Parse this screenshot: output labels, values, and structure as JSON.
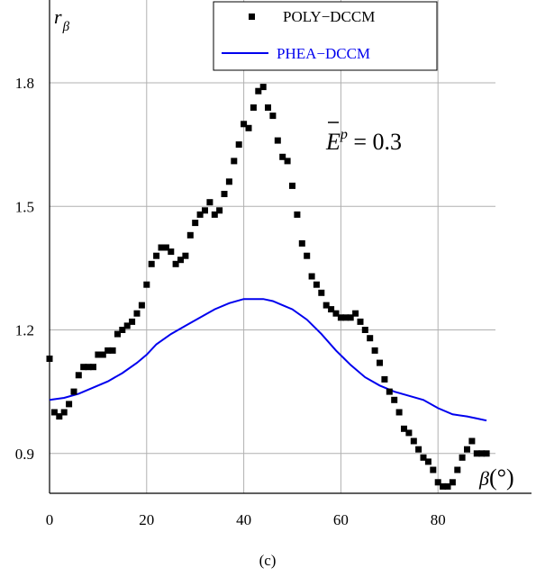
{
  "caption": "(c)",
  "chart_data": {
    "type": "scatter",
    "ylabel": "r",
    "ylabel_subscript": "β",
    "xlabel_symbol": "β",
    "xlabel_unit": "(°)",
    "annotation": {
      "symbol": "E",
      "superscript": "p",
      "suffix": " = 0.3"
    },
    "xlim": [
      0,
      90
    ],
    "ylim": [
      0.82,
      2.0
    ],
    "x_ticks": [
      0,
      20,
      40,
      60,
      80
    ],
    "x_tick_labels": [
      "0",
      "20",
      "40",
      "60",
      "80"
    ],
    "y_ticks": [
      0.9,
      1.2,
      1.5,
      1.8
    ],
    "y_tick_labels": [
      "0.9",
      "1.2",
      "1.5",
      "1.8"
    ],
    "grid": true,
    "legend_position": "top-right",
    "series": [
      {
        "name": "POLY−DCCM",
        "style": "markers",
        "color": "#000000",
        "x": [
          0,
          1,
          2,
          3,
          4,
          5,
          6,
          7,
          8,
          9,
          10,
          11,
          12,
          13,
          14,
          15,
          16,
          17,
          18,
          19,
          20,
          21,
          22,
          23,
          24,
          25,
          26,
          27,
          28,
          29,
          30,
          31,
          32,
          33,
          34,
          35,
          36,
          37,
          38,
          39,
          40,
          41,
          42,
          43,
          44,
          45,
          46,
          47,
          48,
          49,
          50,
          51,
          52,
          53,
          54,
          55,
          56,
          57,
          58,
          59,
          60,
          61,
          62,
          63,
          64,
          65,
          66,
          67,
          68,
          69,
          70,
          71,
          72,
          73,
          74,
          75,
          76,
          77,
          78,
          79,
          80,
          81,
          82,
          83,
          84,
          85,
          86,
          87,
          88,
          89,
          90
        ],
        "y": [
          1.13,
          1.0,
          0.99,
          1.0,
          1.02,
          1.05,
          1.09,
          1.11,
          1.11,
          1.11,
          1.14,
          1.14,
          1.15,
          1.15,
          1.19,
          1.2,
          1.21,
          1.22,
          1.24,
          1.26,
          1.31,
          1.36,
          1.38,
          1.4,
          1.4,
          1.39,
          1.36,
          1.37,
          1.38,
          1.43,
          1.46,
          1.48,
          1.49,
          1.51,
          1.48,
          1.49,
          1.53,
          1.56,
          1.61,
          1.65,
          1.7,
          1.69,
          1.74,
          1.78,
          1.79,
          1.74,
          1.72,
          1.66,
          1.62,
          1.61,
          1.55,
          1.48,
          1.41,
          1.38,
          1.33,
          1.31,
          1.29,
          1.26,
          1.25,
          1.24,
          1.23,
          1.23,
          1.23,
          1.24,
          1.22,
          1.2,
          1.18,
          1.15,
          1.12,
          1.08,
          1.05,
          1.03,
          1.0,
          0.96,
          0.95,
          0.93,
          0.91,
          0.89,
          0.88,
          0.86,
          0.83,
          0.82,
          0.82,
          0.83,
          0.86,
          0.89,
          0.91,
          0.93,
          0.9,
          0.9,
          0.9
        ]
      },
      {
        "name": "PHEA−DCCM",
        "style": "line",
        "color": "#0000ee",
        "x": [
          0,
          3,
          6,
          9,
          12,
          15,
          18,
          20,
          22,
          25,
          28,
          31,
          34,
          37,
          40,
          42,
          44,
          46,
          48,
          50,
          53,
          56,
          59,
          62,
          65,
          68,
          71,
          74,
          77,
          80,
          83,
          86,
          88,
          90
        ],
        "y": [
          1.03,
          1.035,
          1.045,
          1.06,
          1.075,
          1.095,
          1.12,
          1.14,
          1.165,
          1.19,
          1.21,
          1.23,
          1.25,
          1.265,
          1.275,
          1.275,
          1.275,
          1.27,
          1.26,
          1.25,
          1.225,
          1.19,
          1.15,
          1.115,
          1.085,
          1.065,
          1.05,
          1.04,
          1.03,
          1.01,
          0.995,
          0.99,
          0.985,
          0.98
        ]
      }
    ]
  }
}
